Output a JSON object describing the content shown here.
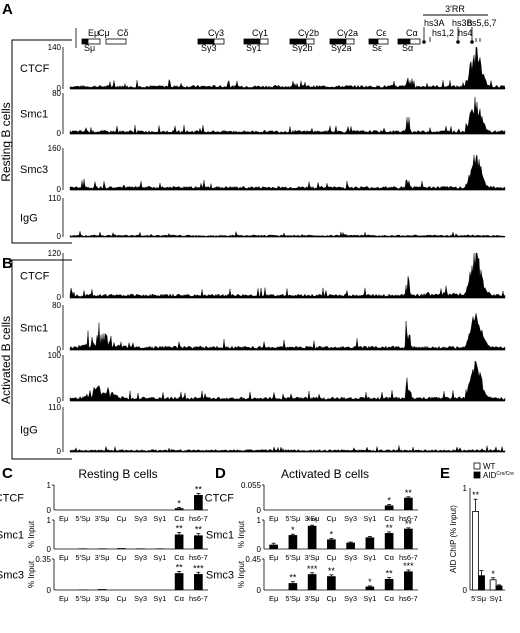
{
  "panels": [
    {
      "letter": "A",
      "side_label": "Resting B cells",
      "tracks": [
        {
          "name": "CTCF",
          "ymax": "140",
          "ymin": "0"
        },
        {
          "name": "Smc1",
          "ymax": "80",
          "ymin": "0"
        },
        {
          "name": "Smc3",
          "ymax": "160",
          "ymin": "0"
        },
        {
          "name": "IgG",
          "ymax": "110",
          "ymin": "0"
        }
      ]
    },
    {
      "letter": "B",
      "side_label": "Activated B cells",
      "tracks": [
        {
          "name": "CTCF",
          "ymax": "120",
          "ymin": "0"
        },
        {
          "name": "Smc1",
          "ymax": "80",
          "ymin": "0"
        },
        {
          "name": "Smc3",
          "ymax": "100",
          "ymin": "0"
        },
        {
          "name": "IgG",
          "ymax": "110",
          "ymin": "0"
        }
      ]
    }
  ],
  "locus_map": {
    "top_labels": [
      "Eμ",
      "Cμ",
      "Cδ",
      "Cγ3",
      "Cγ1",
      "Cγ2b",
      "Cγ2a",
      "Cε",
      "Cα"
    ],
    "bottom_labels": [
      "Sμ",
      "Sγ3",
      "Sγ1",
      "Sγ2b",
      "Sγ2a",
      "Sε",
      "Sα"
    ],
    "rr_label": "3'RR",
    "hs_labels": [
      "hs3A",
      "hs1,2",
      "hs3B",
      "hs5,6,7",
      "hs4"
    ]
  },
  "chart_data": [
    {
      "panel": "C",
      "title": "Resting B cells",
      "type": "bar",
      "ylabel": "% Input",
      "categories": [
        "Eμ",
        "5'Sμ",
        "3'Sμ",
        "Cμ",
        "Sγ3",
        "Sγ1",
        "Cα",
        "hs6-7"
      ],
      "rows": [
        {
          "name": "CTCF",
          "ymax_label": "1",
          "ymin_label": "0",
          "ylim": [
            0,
            1
          ],
          "values": [
            0,
            0,
            0,
            0,
            0,
            0,
            0.07,
            0.6
          ],
          "errors": [
            0,
            0,
            0,
            0,
            0,
            0,
            0.03,
            0.06
          ],
          "sig": [
            "",
            "",
            "",
            "",
            "",
            "",
            "*",
            "**"
          ]
        },
        {
          "name": "Smc1",
          "ymax_label": "1",
          "ymin_label": "0",
          "ylim": [
            0,
            1
          ],
          "values": [
            0,
            0.02,
            0.02,
            0.03,
            0.02,
            0.02,
            0.5,
            0.47
          ],
          "errors": [
            0,
            0,
            0,
            0,
            0,
            0,
            0.07,
            0.06
          ],
          "sig": [
            "",
            "",
            "",
            "",
            "",
            "",
            "**",
            "**"
          ]
        },
        {
          "name": "Smc3",
          "ymax_label": "0.35",
          "ymin_label": "0",
          "ylim": [
            0,
            0.35
          ],
          "values": [
            0,
            0.005,
            0.01,
            0,
            0,
            0,
            0.19,
            0.18
          ],
          "errors": [
            0,
            0,
            0,
            0,
            0,
            0,
            0.02,
            0.02
          ],
          "sig": [
            "",
            "",
            "",
            "",
            "",
            "",
            "**",
            "***"
          ]
        }
      ]
    },
    {
      "panel": "D",
      "title": "Activated B cells",
      "type": "bar",
      "ylabel": "% Input",
      "categories": [
        "Eμ",
        "5'Sμ",
        "3'Sμ",
        "Cμ",
        "Sγ3",
        "Sγ1",
        "Cα",
        "hs6-7"
      ],
      "rows": [
        {
          "name": "CTCF",
          "ymax_label": "0.055",
          "ymin_label": "0",
          "ylim": [
            0,
            0.055
          ],
          "values": [
            0,
            0,
            0,
            0,
            0,
            0,
            0.01,
            0.027
          ],
          "errors": [
            0,
            0,
            0,
            0,
            0,
            0,
            0.002,
            0.002
          ],
          "sig": [
            "",
            "",
            "",
            "",
            "",
            "",
            "*",
            "**"
          ]
        },
        {
          "name": "Smc1",
          "ymax_label": "1",
          "ymin_label": "0",
          "ylim": [
            0,
            1
          ],
          "values": [
            0.15,
            0.48,
            0.8,
            0.33,
            0.22,
            0.4,
            0.55,
            0.7
          ],
          "errors": [
            0.05,
            0.03,
            0.02,
            0.03,
            0.02,
            0.03,
            0.04,
            0.03
          ],
          "sig": [
            "",
            "*",
            "***",
            "*",
            "",
            "",
            "**",
            "**"
          ]
        },
        {
          "name": "Smc3",
          "ymax_label": "0.45",
          "ymin_label": "0",
          "ylim": [
            0,
            0.45
          ],
          "values": [
            0,
            0.1,
            0.23,
            0.2,
            0,
            0.05,
            0.16,
            0.27
          ],
          "errors": [
            0,
            0.02,
            0.02,
            0.02,
            0,
            0.01,
            0.02,
            0.02
          ],
          "sig": [
            "",
            "**",
            "***",
            "**",
            "",
            "*",
            "**",
            "***"
          ]
        }
      ]
    },
    {
      "panel": "E",
      "type": "bar",
      "ylabel": "AID ChIP (% Input)",
      "categories": [
        "5'Sμ",
        "Sγ1"
      ],
      "ymax_label": "1",
      "ymin_label": "0",
      "ylim": [
        0,
        1
      ],
      "series": [
        {
          "name": "WT",
          "values": [
            0.77,
            0.1
          ],
          "errors": [
            0.12,
            0.02
          ],
          "sig": [
            "**",
            "*"
          ]
        },
        {
          "name": "AID",
          "values": [
            0.14,
            0.04
          ],
          "errors": [
            0.05,
            0.01
          ],
          "sig": [
            "",
            ""
          ]
        }
      ],
      "legend_sup": "Cre/Cre"
    }
  ]
}
